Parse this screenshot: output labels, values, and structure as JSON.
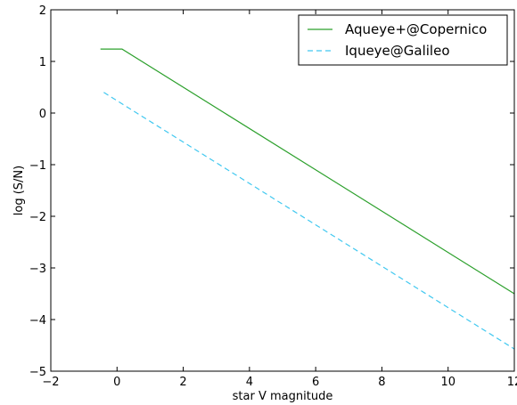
{
  "chart_data": {
    "type": "line",
    "title": "",
    "xlabel": "star V magnitude",
    "ylabel": "log (S/N)",
    "xlim": [
      -2,
      12
    ],
    "ylim": [
      -5,
      2
    ],
    "x_ticks": [
      -2,
      0,
      2,
      4,
      6,
      8,
      10,
      12
    ],
    "y_ticks": [
      -5,
      -4,
      -3,
      -2,
      -1,
      0,
      1,
      2
    ],
    "x_tick_labels": [
      "−2",
      "0",
      "2",
      "4",
      "6",
      "8",
      "10",
      "12"
    ],
    "y_tick_labels": [
      "−5",
      "−4",
      "−3",
      "−2",
      "−1",
      "0",
      "1",
      "2"
    ],
    "grid": false,
    "legend_position": "top-right",
    "series": [
      {
        "name": "Aqueye+@Copernico",
        "color": "#2ca02c",
        "style": "solid",
        "x": [
          -0.5,
          0.15,
          12
        ],
        "y": [
          1.24,
          1.24,
          -3.5
        ]
      },
      {
        "name": "Iqueye@Galileo",
        "color": "#40c8f0",
        "style": "dashed",
        "x": [
          -0.4,
          12
        ],
        "y": [
          0.4,
          -4.57
        ]
      }
    ]
  }
}
